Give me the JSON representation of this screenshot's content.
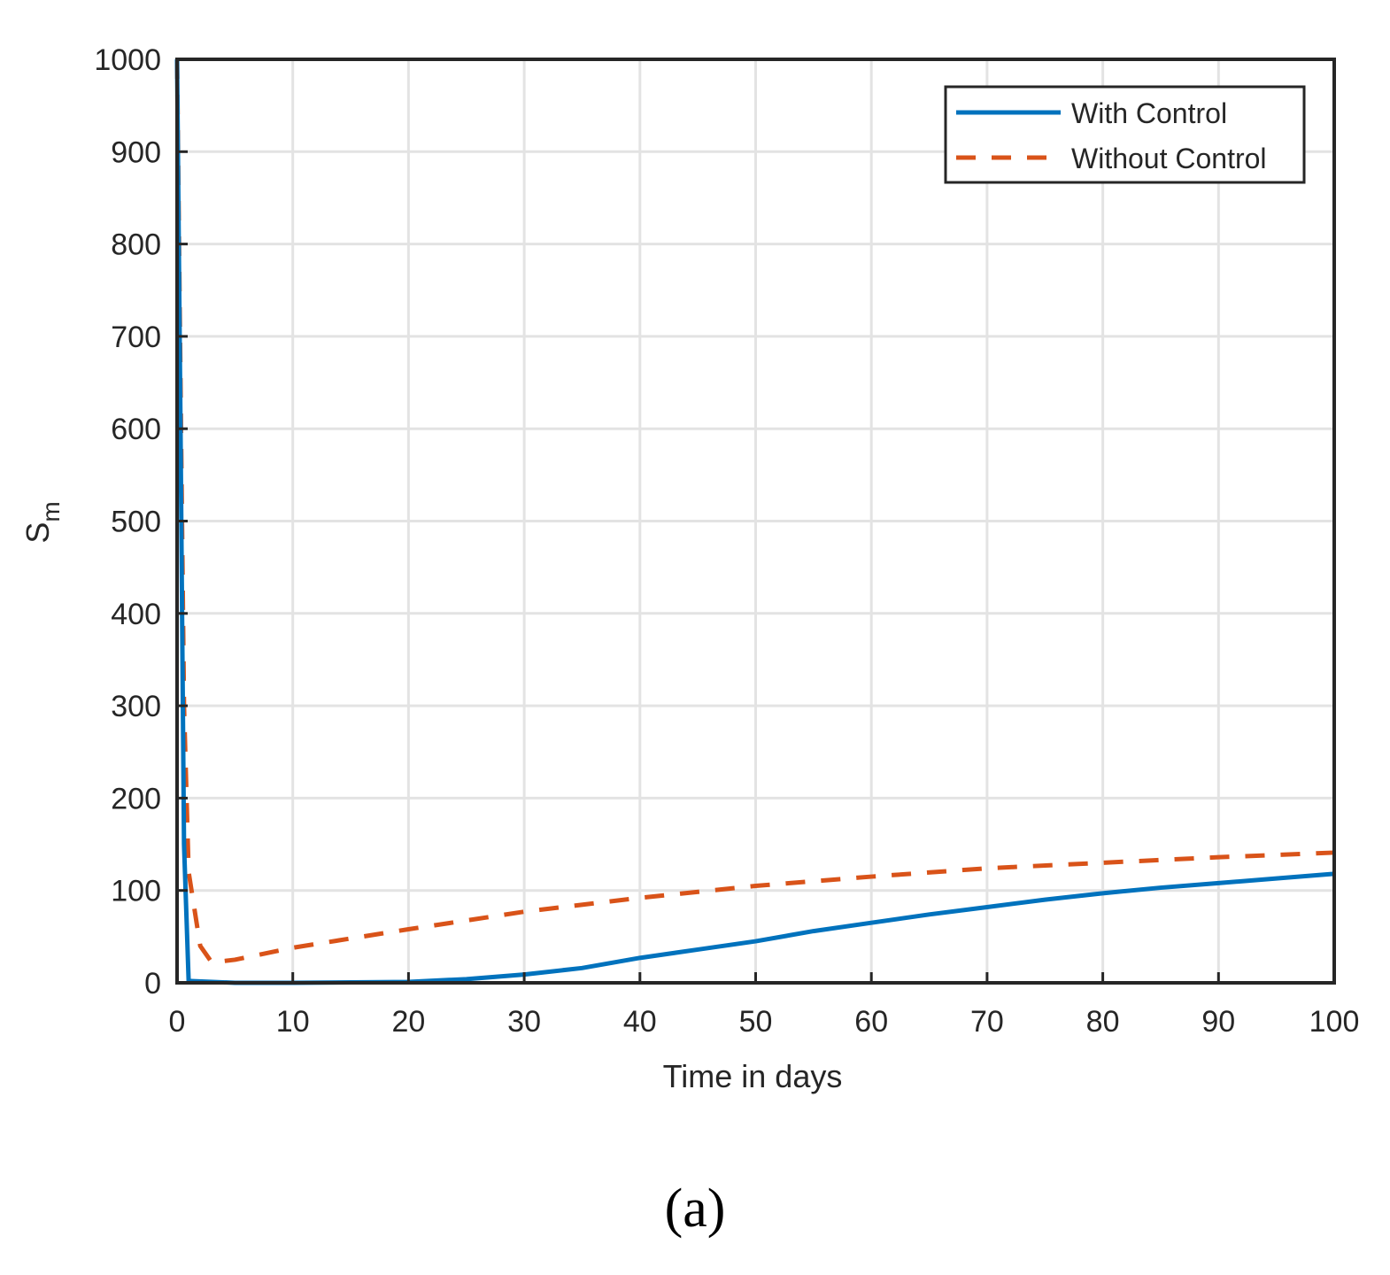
{
  "chart_data": {
    "type": "line",
    "title": "",
    "xlabel": "Time in days",
    "ylabel": "S_m",
    "ylabel_main": "S",
    "ylabel_sub": "m",
    "xlim": [
      0,
      100
    ],
    "ylim": [
      0,
      1000
    ],
    "xticks": [
      0,
      10,
      20,
      30,
      40,
      50,
      60,
      70,
      80,
      90,
      100
    ],
    "yticks": [
      0,
      100,
      200,
      300,
      400,
      500,
      600,
      700,
      800,
      900,
      1000
    ],
    "grid": true,
    "legend_position": "upper right",
    "series": [
      {
        "name": "With Control",
        "style": "solid",
        "color": "#0072BD",
        "x": [
          0,
          0.3,
          0.6,
          1,
          5,
          10,
          20,
          25,
          30,
          35,
          40,
          45,
          50,
          55,
          60,
          65,
          70,
          75,
          80,
          85,
          90,
          95,
          100
        ],
        "values": [
          1000,
          600,
          150,
          2,
          0,
          0,
          1,
          4,
          9,
          16,
          27,
          36,
          45,
          56,
          65,
          74,
          82,
          90,
          97,
          103,
          108,
          113,
          118
        ]
      },
      {
        "name": "Without Control",
        "style": "dashed",
        "color": "#D95319",
        "x": [
          0,
          0.3,
          0.6,
          1,
          2,
          3,
          5,
          10,
          20,
          30,
          40,
          50,
          60,
          70,
          80,
          90,
          100
        ],
        "values": [
          1000,
          650,
          300,
          120,
          40,
          22,
          25,
          38,
          58,
          77,
          92,
          105,
          115,
          124,
          130,
          136,
          141
        ]
      }
    ]
  },
  "caption": "(a)"
}
